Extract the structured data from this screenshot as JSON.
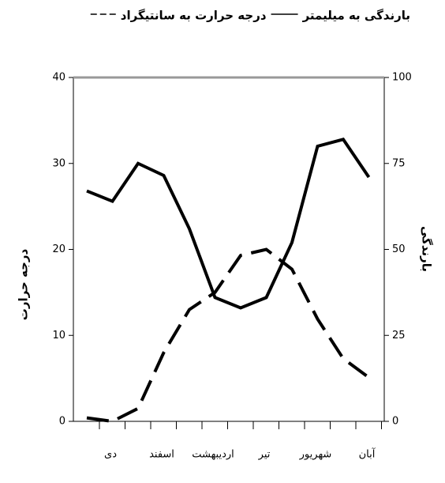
{
  "chart_data": {
    "type": "line",
    "categories": [
      "دی",
      null,
      "اسفند",
      null,
      "اردیبهشت",
      null,
      "تیر",
      null,
      "شهریور",
      null,
      "آبان",
      null
    ],
    "series": [
      {
        "name": "بارندگی به میلیمتر",
        "color": "#000000",
        "style": "solid",
        "axis": "y2",
        "values": [
          67,
          64,
          75,
          71.5,
          56,
          36,
          33,
          36,
          52,
          80,
          82,
          71
        ]
      },
      {
        "name": "درجه حرارت به سانتیگراد",
        "color": "#000000",
        "style": "dashed",
        "axis": "y",
        "values": [
          0.4,
          0,
          1.5,
          8,
          13,
          15,
          19.3,
          20,
          17.7,
          11.9,
          7.3,
          5.1
        ]
      }
    ],
    "y_label": "درجه حرارت",
    "y2_label": "بارندگی",
    "ylim": [
      0,
      40
    ],
    "yticks": [
      0,
      10,
      20,
      30,
      40
    ],
    "y2lim": [
      0,
      100
    ],
    "y2ticks": [
      0,
      25,
      50,
      75,
      100
    ]
  }
}
